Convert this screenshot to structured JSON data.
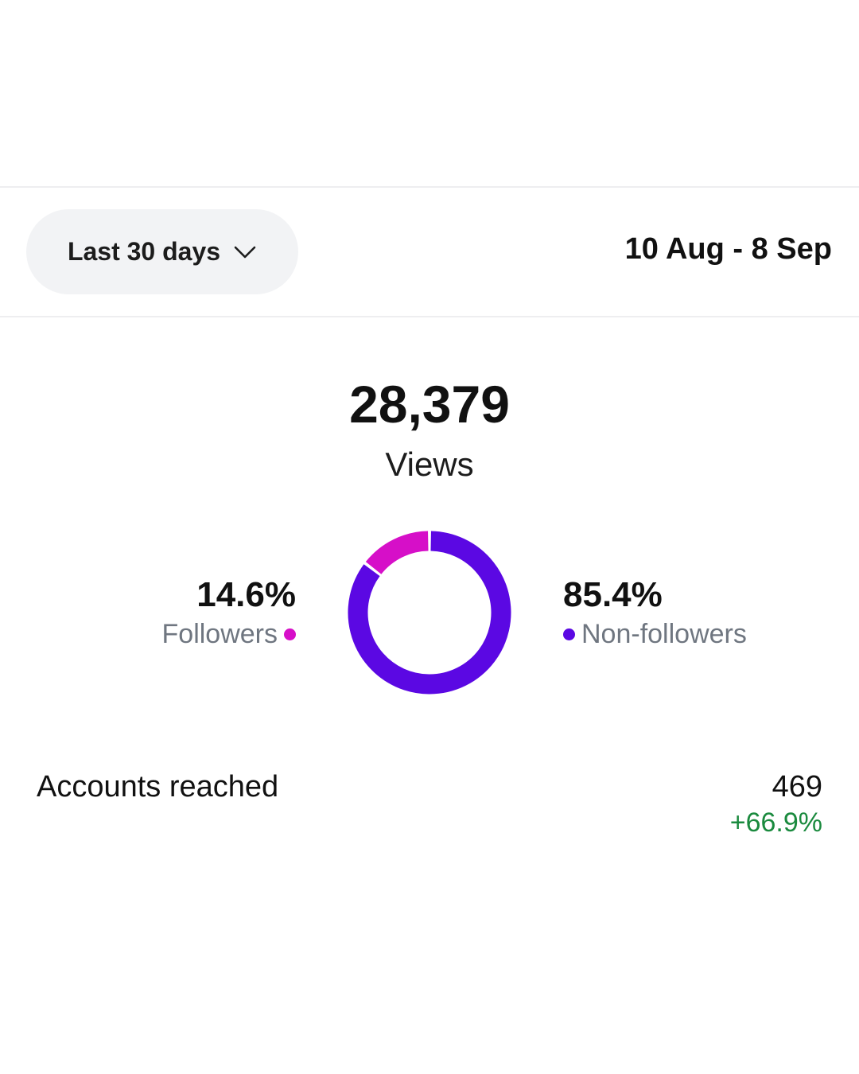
{
  "filter": {
    "range_label": "Last 30 days",
    "date_range": "10 Aug - 8 Sep"
  },
  "views": {
    "count": "28,379",
    "label": "Views"
  },
  "breakdown": {
    "followers": {
      "percent": "14.6%",
      "label": "Followers",
      "fraction": 0.146,
      "color": "#d60fc8"
    },
    "non_followers": {
      "percent": "85.4%",
      "label": "Non-followers",
      "fraction": 0.854,
      "color": "#5b08e3"
    }
  },
  "accounts_reached": {
    "label": "Accounts reached",
    "value": "469",
    "change": "+66.9%",
    "change_color": "#1a8a3e"
  },
  "icons": {
    "dropdown": "chevron-down-icon"
  }
}
